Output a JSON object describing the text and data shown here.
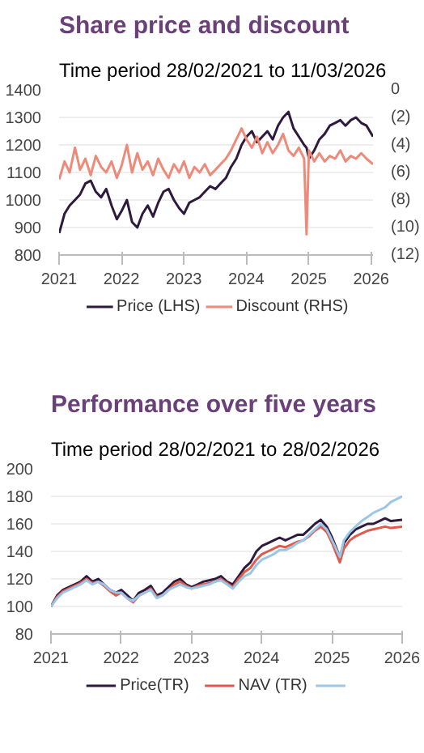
{
  "chart_data": [
    {
      "type": "line",
      "title": "Share price and discount",
      "subtitle": "Time period 28/02/2021 to 11/03/2026",
      "legend": "bottom",
      "grid": "y",
      "line_style": "solid",
      "x": [
        "2021-03-01",
        "2021-04-01",
        "2021-05-01",
        "2021-06-01",
        "2021-07-01",
        "2021-08-01",
        "2021-09-01",
        "2021-10-01",
        "2021-11-01",
        "2021-12-01",
        "2022-01-01",
        "2022-02-01",
        "2022-03-01",
        "2022-04-01",
        "2022-05-01",
        "2022-06-01",
        "2022-07-01",
        "2022-08-01",
        "2022-09-01",
        "2022-10-01",
        "2022-11-01",
        "2022-12-01",
        "2023-01-01",
        "2023-02-01",
        "2023-03-01",
        "2023-04-01",
        "2023-05-01",
        "2023-06-01",
        "2023-07-01",
        "2023-08-01",
        "2023-09-01",
        "2023-10-01",
        "2023-11-01",
        "2023-12-01",
        "2024-01-01",
        "2024-02-01",
        "2024-03-01",
        "2024-04-01",
        "2024-05-01",
        "2024-06-01",
        "2024-07-01",
        "2024-08-01",
        "2024-09-01",
        "2024-10-01",
        "2024-11-01",
        "2024-12-01",
        "2025-01-01",
        "2025-02-01",
        "2025-02-15",
        "2025-03-01",
        "2025-04-01",
        "2025-05-01",
        "2025-06-01",
        "2025-07-01",
        "2025-08-01",
        "2025-09-01",
        "2025-10-01",
        "2025-11-01",
        "2025-12-01",
        "2026-01-01",
        "2026-02-01",
        "2026-03-11"
      ],
      "xlim": [
        "2021-02-28",
        "2026-03-11"
      ],
      "xticks": [
        {
          "value": "2021-02-28",
          "label": "2021"
        },
        {
          "value": "2022-02-28",
          "label": "2022"
        },
        {
          "value": "2023-02-28",
          "label": "2023"
        },
        {
          "value": "2024-02-28",
          "label": "2024"
        },
        {
          "value": "2025-02-28",
          "label": "2025"
        },
        {
          "value": "2026-02-28",
          "label": "2026"
        }
      ],
      "ylim": [
        800,
        1400
      ],
      "yticks": [
        800,
        900,
        1000,
        1100,
        1200,
        1300,
        1400
      ],
      "y2lim": [
        -12,
        0
      ],
      "y2ticks": [
        {
          "value": -12,
          "label": "(12)"
        },
        {
          "value": -10,
          "label": "(10)"
        },
        {
          "value": -8,
          "label": "(8)"
        },
        {
          "value": -6,
          "label": "(6)"
        },
        {
          "value": -4,
          "label": "(4)"
        },
        {
          "value": -2,
          "label": "(2)"
        },
        0
      ],
      "series": [
        {
          "name": "Price (LHS)",
          "color": "#2e1a3d",
          "values": [
            880,
            950,
            980,
            1000,
            1020,
            1060,
            1070,
            1030,
            1010,
            1040,
            980,
            930,
            960,
            1000,
            920,
            900,
            950,
            980,
            940,
            990,
            1030,
            1040,
            1000,
            970,
            950,
            990,
            1000,
            1010,
            1030,
            1050,
            1040,
            1060,
            1080,
            1120,
            1150,
            1200,
            1230,
            1250,
            1210,
            1230,
            1250,
            1220,
            1270,
            1300,
            1320,
            1260,
            1230,
            1200,
            1190,
            1150,
            1180,
            1220,
            1240,
            1270,
            1280,
            1290,
            1270,
            1290,
            1300,
            1280,
            1270,
            1230
          ]
        },
        {
          "name": "Discount (RHS)",
          "color": "#ee8a7a",
          "axis": "y2",
          "values": [
            -6.5,
            -5.2,
            -6,
            -4.2,
            -5.8,
            -5,
            -6.2,
            -4.8,
            -5.6,
            -6,
            -5.2,
            -6.4,
            -5.5,
            -4,
            -6,
            -4.6,
            -5.8,
            -5.2,
            -6.2,
            -5,
            -5.8,
            -6.4,
            -5.4,
            -6,
            -5.2,
            -6.4,
            -5.6,
            -6,
            -5.4,
            -6.2,
            -5.8,
            -5.4,
            -5,
            -4.4,
            -3.6,
            -2.8,
            -3.6,
            -4.2,
            -3.4,
            -4.6,
            -3.8,
            -4.6,
            -4,
            -3.2,
            -4.4,
            -4.8,
            -4.2,
            -5,
            -10.5,
            -4.4,
            -5.2,
            -4.6,
            -5.2,
            -4.8,
            -5,
            -4.4,
            -5.2,
            -4.8,
            -5,
            -4.6,
            -5,
            -5.4
          ]
        }
      ]
    },
    {
      "type": "line",
      "title": "Performance over five years",
      "subtitle": "Time period 28/02/2021 to 28/02/2026",
      "legend": "bottom",
      "grid": "y",
      "line_style": "solid",
      "x": [
        "2021-02-28",
        "2021-04-01",
        "2021-05-01",
        "2021-06-01",
        "2021-07-01",
        "2021-08-01",
        "2021-09-01",
        "2021-10-01",
        "2021-11-01",
        "2021-12-01",
        "2022-01-01",
        "2022-02-01",
        "2022-03-01",
        "2022-04-01",
        "2022-05-01",
        "2022-06-01",
        "2022-07-01",
        "2022-08-01",
        "2022-09-01",
        "2022-10-01",
        "2022-11-01",
        "2022-12-01",
        "2023-01-01",
        "2023-02-01",
        "2023-03-01",
        "2023-04-01",
        "2023-05-01",
        "2023-06-01",
        "2023-07-01",
        "2023-08-01",
        "2023-09-01",
        "2023-10-01",
        "2023-11-01",
        "2023-12-01",
        "2024-01-01",
        "2024-02-01",
        "2024-03-01",
        "2024-04-01",
        "2024-05-01",
        "2024-06-01",
        "2024-07-01",
        "2024-08-01",
        "2024-09-01",
        "2024-10-01",
        "2024-11-01",
        "2024-12-01",
        "2025-01-01",
        "2025-02-01",
        "2025-03-01",
        "2025-04-10",
        "2025-05-01",
        "2025-06-01",
        "2025-07-01",
        "2025-08-01",
        "2025-09-01",
        "2025-10-01",
        "2025-11-01",
        "2025-12-01",
        "2026-01-01",
        "2026-02-28"
      ],
      "xlim": [
        "2021-02-28",
        "2026-02-28"
      ],
      "xticks": [
        {
          "value": "2021-02-28",
          "label": "2021"
        },
        {
          "value": "2022-02-28",
          "label": "2022"
        },
        {
          "value": "2023-02-28",
          "label": "2023"
        },
        {
          "value": "2024-02-28",
          "label": "2024"
        },
        {
          "value": "2025-02-28",
          "label": "2025"
        },
        {
          "value": "2026-02-28",
          "label": "2026"
        }
      ],
      "ylim": [
        80,
        200
      ],
      "yticks": [
        80,
        100,
        120,
        140,
        160,
        180,
        200
      ],
      "series": [
        {
          "name": "Price(TR)",
          "color": "#2e1a3d",
          "values": [
            100,
            108,
            112,
            114,
            116,
            118,
            122,
            118,
            120,
            116,
            112,
            110,
            112,
            108,
            104,
            110,
            112,
            115,
            108,
            110,
            114,
            118,
            120,
            116,
            114,
            116,
            118,
            119,
            120,
            122,
            118,
            116,
            122,
            128,
            132,
            140,
            144,
            146,
            148,
            150,
            148,
            150,
            152,
            152,
            156,
            160,
            163,
            158,
            150,
            136,
            146,
            152,
            156,
            158,
            160,
            160,
            162,
            164,
            162,
            163
          ]
        },
        {
          "name": "NAV (TR)",
          "color": "#e05a4a",
          "values": [
            100,
            107,
            111,
            113,
            115,
            117,
            120,
            117,
            118,
            115,
            111,
            108,
            110,
            106,
            103,
            108,
            110,
            113,
            107,
            108,
            112,
            116,
            118,
            115,
            113,
            115,
            116,
            117,
            118,
            120,
            117,
            114,
            120,
            125,
            128,
            134,
            138,
            140,
            142,
            144,
            143,
            145,
            147,
            148,
            151,
            155,
            158,
            154,
            146,
            132,
            142,
            148,
            151,
            153,
            155,
            156,
            157,
            158,
            157,
            158
          ]
        },
        {
          "color": "#9ac6e8",
          "values": [
            100,
            106,
            110,
            112,
            114,
            116,
            119,
            116,
            118,
            116,
            112,
            110,
            110,
            106,
            104,
            108,
            110,
            112,
            106,
            108,
            112,
            114,
            116,
            114,
            113,
            114,
            115,
            116,
            118,
            119,
            116,
            113,
            118,
            122,
            124,
            130,
            134,
            136,
            138,
            141,
            141,
            143,
            146,
            148,
            152,
            156,
            160,
            156,
            148,
            136,
            148,
            154,
            158,
            162,
            165,
            168,
            170,
            172,
            176,
            180
          ]
        }
      ]
    }
  ]
}
